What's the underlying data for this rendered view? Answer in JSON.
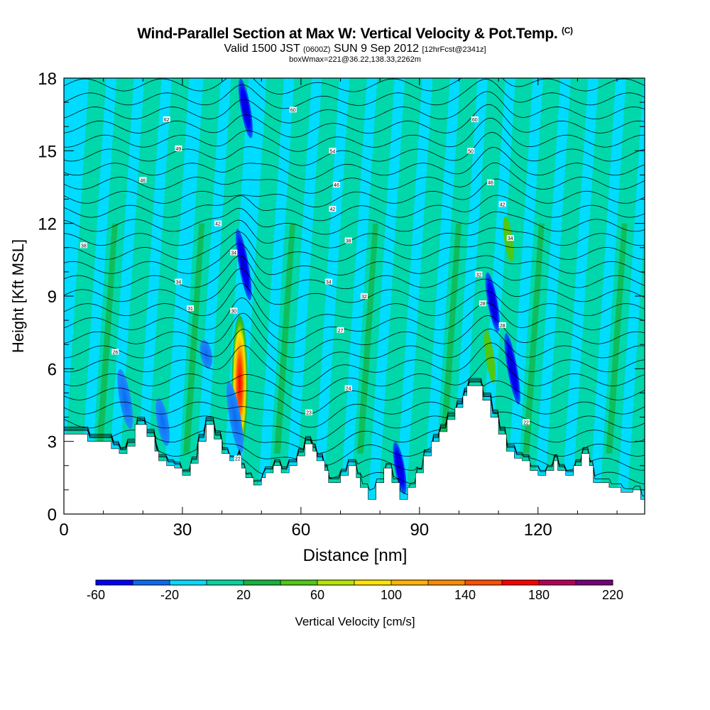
{
  "chart_data": {
    "type": "heatmap",
    "title": "Wind-Parallel Section at Max W: Vertical Velocity & Pot.Temp.",
    "title_mark": "(C)",
    "subtitle_pre": "Valid 1500 JST",
    "subtitle_z": "(0600Z)",
    "subtitle_date": "SUN 9 Sep 2012",
    "subtitle_fcst": "[12hrFcst@2341z]",
    "subtitle2": "boxWmax=221@36.22,138.33,2262m",
    "xlabel": "Distance [nm]",
    "ylabel": "Height [Kft MSL]",
    "xlim": [
      0,
      147
    ],
    "ylim": [
      0,
      18
    ],
    "x_ticks": [
      "0",
      "30",
      "60",
      "90",
      "120"
    ],
    "y_ticks": [
      "0",
      "3",
      "6",
      "9",
      "12",
      "15",
      "18"
    ],
    "colorbar": {
      "label": "Vertical Velocity [cm/s]",
      "tick_labels": [
        "-60",
        "-20",
        "20",
        "60",
        "100",
        "140",
        "180",
        "220"
      ],
      "colors": [
        "#0000ff",
        "#0a6cf2",
        "#00dcff",
        "#00d69c",
        "#14b43c",
        "#50c814",
        "#b4e600",
        "#ffe600",
        "#ffb400",
        "#ff8c00",
        "#ff5000",
        "#ff0000",
        "#b4005a",
        "#780078"
      ]
    },
    "terrain_kft": [
      [
        0,
        3.3
      ],
      [
        6,
        3.3
      ],
      [
        6,
        3.0
      ],
      [
        12,
        3.0
      ],
      [
        12,
        2.7
      ],
      [
        14,
        2.7
      ],
      [
        14,
        2.5
      ],
      [
        16,
        2.5
      ],
      [
        16,
        2.8
      ],
      [
        18,
        2.8
      ],
      [
        18,
        3.7
      ],
      [
        21,
        3.7
      ],
      [
        21,
        3.2
      ],
      [
        23,
        3.2
      ],
      [
        23,
        2.6
      ],
      [
        24,
        2.6
      ],
      [
        24,
        2.2
      ],
      [
        26,
        2.2
      ],
      [
        26,
        2.0
      ],
      [
        28,
        2.0
      ],
      [
        28,
        1.9
      ],
      [
        30,
        1.9
      ],
      [
        30,
        1.6
      ],
      [
        32,
        1.6
      ],
      [
        32,
        2.1
      ],
      [
        34,
        2.1
      ],
      [
        34,
        3.0
      ],
      [
        36,
        3.0
      ],
      [
        36,
        3.7
      ],
      [
        38,
        3.7
      ],
      [
        38,
        3.1
      ],
      [
        40,
        3.1
      ],
      [
        40,
        2.5
      ],
      [
        42,
        2.5
      ],
      [
        42,
        2.2
      ],
      [
        44,
        2.2
      ],
      [
        44,
        2.4
      ],
      [
        45,
        2.4
      ],
      [
        45,
        1.9
      ],
      [
        46,
        1.9
      ],
      [
        46,
        1.5
      ],
      [
        48,
        1.5
      ],
      [
        48,
        1.2
      ],
      [
        50,
        1.2
      ],
      [
        50,
        1.5
      ],
      [
        51,
        1.5
      ],
      [
        51,
        1.7
      ],
      [
        53,
        1.7
      ],
      [
        53,
        2.0
      ],
      [
        55,
        2.0
      ],
      [
        55,
        1.7
      ],
      [
        57,
        1.7
      ],
      [
        57,
        2.0
      ],
      [
        59,
        2.0
      ],
      [
        59,
        2.4
      ],
      [
        61,
        2.4
      ],
      [
        61,
        2.9
      ],
      [
        63,
        2.9
      ],
      [
        63,
        2.6
      ],
      [
        64,
        2.6
      ],
      [
        64,
        2.2
      ],
      [
        66,
        2.2
      ],
      [
        66,
        1.8
      ],
      [
        67,
        1.8
      ],
      [
        67,
        1.3
      ],
      [
        70,
        1.3
      ],
      [
        70,
        1.6
      ],
      [
        72,
        1.6
      ],
      [
        72,
        2.0
      ],
      [
        74,
        2.0
      ],
      [
        74,
        1.5
      ],
      [
        75,
        1.5
      ],
      [
        75,
        1.1
      ],
      [
        77,
        1.1
      ],
      [
        77,
        0.6
      ],
      [
        79,
        0.6
      ],
      [
        79,
        1.3
      ],
      [
        81,
        1.3
      ],
      [
        81,
        1.9
      ],
      [
        83,
        1.9
      ],
      [
        83,
        1.3
      ],
      [
        85,
        1.3
      ],
      [
        85,
        0.6
      ],
      [
        87,
        0.6
      ],
      [
        87,
        1.1
      ],
      [
        89,
        1.1
      ],
      [
        89,
        1.7
      ],
      [
        91,
        1.7
      ],
      [
        91,
        2.4
      ],
      [
        93,
        2.4
      ],
      [
        93,
        3.0
      ],
      [
        95,
        3.0
      ],
      [
        95,
        3.4
      ],
      [
        97,
        3.4
      ],
      [
        97,
        3.9
      ],
      [
        99,
        3.9
      ],
      [
        99,
        4.4
      ],
      [
        101,
        4.4
      ],
      [
        101,
        4.9
      ],
      [
        102,
        4.9
      ],
      [
        102,
        5.3
      ],
      [
        106,
        5.3
      ],
      [
        106,
        4.7
      ],
      [
        108,
        4.7
      ],
      [
        108,
        4.0
      ],
      [
        110,
        4.0
      ],
      [
        110,
        3.3
      ],
      [
        112,
        3.3
      ],
      [
        112,
        2.6
      ],
      [
        114,
        2.6
      ],
      [
        114,
        2.3
      ],
      [
        116,
        2.3
      ],
      [
        116,
        2.2
      ],
      [
        118,
        2.2
      ],
      [
        118,
        1.8
      ],
      [
        120,
        1.8
      ],
      [
        120,
        1.6
      ],
      [
        122,
        1.6
      ],
      [
        122,
        1.8
      ],
      [
        124,
        1.8
      ],
      [
        124,
        2.2
      ],
      [
        125,
        2.2
      ],
      [
        125,
        1.8
      ],
      [
        127,
        1.8
      ],
      [
        127,
        1.6
      ],
      [
        129,
        1.6
      ],
      [
        129,
        2.0
      ],
      [
        131,
        2.0
      ],
      [
        131,
        2.5
      ],
      [
        133,
        2.5
      ],
      [
        133,
        2.0
      ],
      [
        134,
        2.0
      ],
      [
        134,
        1.3
      ],
      [
        138,
        1.3
      ],
      [
        138,
        1.1
      ],
      [
        141,
        1.1
      ],
      [
        141,
        0.9
      ],
      [
        144,
        0.9
      ],
      [
        144,
        1.0
      ],
      [
        146,
        1.0
      ],
      [
        146,
        0.6
      ],
      [
        147,
        0.6
      ]
    ],
    "contour_labels": [
      {
        "x": 26,
        "y": 16.3,
        "text": "62"
      },
      {
        "x": 58,
        "y": 16.7,
        "text": "60"
      },
      {
        "x": 104,
        "y": 16.3,
        "text": "60"
      },
      {
        "x": 29,
        "y": 15.1,
        "text": "49"
      },
      {
        "x": 68,
        "y": 15.0,
        "text": "54"
      },
      {
        "x": 103,
        "y": 15.0,
        "text": "50"
      },
      {
        "x": 20,
        "y": 13.8,
        "text": "46"
      },
      {
        "x": 69,
        "y": 13.6,
        "text": "46"
      },
      {
        "x": 108,
        "y": 13.7,
        "text": "46"
      },
      {
        "x": 68,
        "y": 12.6,
        "text": "42"
      },
      {
        "x": 111,
        "y": 12.8,
        "text": "42"
      },
      {
        "x": 39,
        "y": 12.0,
        "text": "42"
      },
      {
        "x": 5,
        "y": 11.1,
        "text": "38"
      },
      {
        "x": 72,
        "y": 11.3,
        "text": "38"
      },
      {
        "x": 113,
        "y": 11.4,
        "text": "34"
      },
      {
        "x": 43,
        "y": 10.8,
        "text": "34"
      },
      {
        "x": 29,
        "y": 9.6,
        "text": "34"
      },
      {
        "x": 67,
        "y": 9.6,
        "text": "34"
      },
      {
        "x": 105,
        "y": 9.9,
        "text": "32"
      },
      {
        "x": 76,
        "y": 9.0,
        "text": "32"
      },
      {
        "x": 32,
        "y": 8.5,
        "text": "31"
      },
      {
        "x": 43,
        "y": 8.4,
        "text": "30"
      },
      {
        "x": 106,
        "y": 8.7,
        "text": "28"
      },
      {
        "x": 111,
        "y": 7.8,
        "text": "28"
      },
      {
        "x": 70,
        "y": 7.6,
        "text": "27"
      },
      {
        "x": 13,
        "y": 6.7,
        "text": "26"
      },
      {
        "x": 72,
        "y": 5.2,
        "text": "24"
      },
      {
        "x": 62,
        "y": 4.2,
        "text": "23"
      },
      {
        "x": 117,
        "y": 3.8,
        "text": "22"
      },
      {
        "x": 44,
        "y": 2.3,
        "text": "22"
      }
    ],
    "updrafts": [
      {
        "x": 44.5,
        "y_bottom": 2.6,
        "y_top": 8.2,
        "max": 221
      },
      {
        "x": 107.8,
        "y_bottom": 5.4,
        "y_top": 7.6,
        "max": 40
      },
      {
        "x": 112.5,
        "y_bottom": 10.4,
        "y_top": 12.3,
        "max": 40
      }
    ],
    "downdrafts": [
      {
        "x": 45.5,
        "y_bottom": 8.8,
        "y_top": 11.8,
        "min": -60
      },
      {
        "x": 46.0,
        "y_bottom": 15.5,
        "y_top": 18.0,
        "min": -60
      },
      {
        "x": 43.3,
        "y_bottom": 2.5,
        "y_top": 5.5,
        "min": -40
      },
      {
        "x": 108.5,
        "y_bottom": 7.5,
        "y_top": 10.0,
        "min": -60
      },
      {
        "x": 113.5,
        "y_bottom": 4.5,
        "y_top": 7.5,
        "min": -60
      },
      {
        "x": 85.0,
        "y_bottom": 0.8,
        "y_top": 3.0,
        "min": -50
      },
      {
        "x": 25.0,
        "y_bottom": 2.8,
        "y_top": 4.8,
        "min": -30
      },
      {
        "x": 15.5,
        "y_bottom": 3.5,
        "y_top": 6.0,
        "min": -25
      },
      {
        "x": 36.0,
        "y_bottom": 6.0,
        "y_top": 7.2,
        "min": -25
      }
    ]
  }
}
